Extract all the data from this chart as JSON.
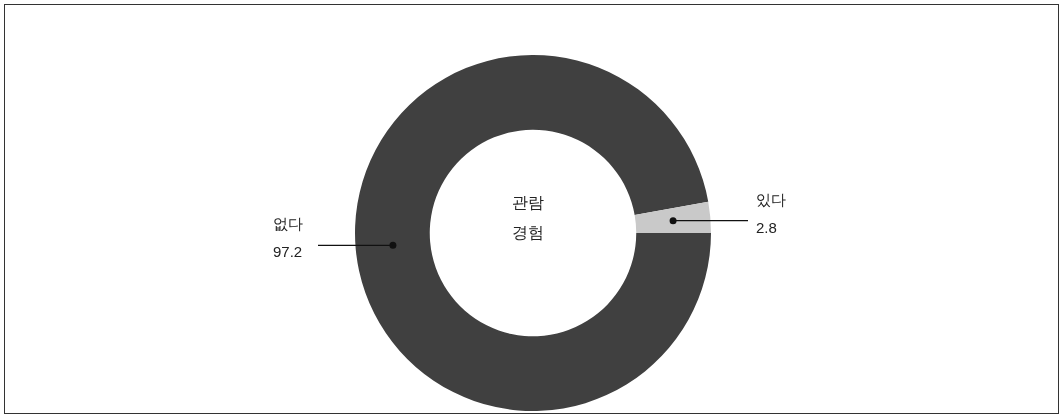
{
  "chart_data": {
    "type": "donut",
    "title": "관람\n경험",
    "categories": [
      "없다",
      "있다"
    ],
    "values": [
      97.2,
      2.8
    ],
    "colors": [
      "#404040",
      "#c9c9c9"
    ],
    "data_labels": true
  }
}
